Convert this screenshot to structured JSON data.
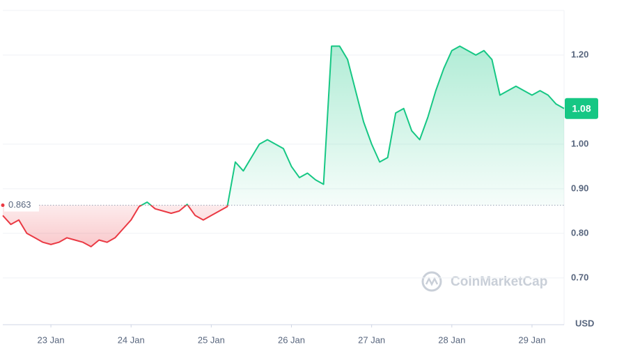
{
  "chart_data": {
    "type": "line",
    "xlim": [
      0,
      70
    ],
    "xticks": [
      {
        "value": 6,
        "label": "23 Jan"
      },
      {
        "value": 16,
        "label": "24 Jan"
      },
      {
        "value": 26,
        "label": "25 Jan"
      },
      {
        "value": 36,
        "label": "26 Jan"
      },
      {
        "value": 46,
        "label": "27 Jan"
      },
      {
        "value": 56,
        "label": "28 Jan"
      },
      {
        "value": 66,
        "label": "29 Jan"
      }
    ],
    "ylim": [
      0.595,
      1.3
    ],
    "yticks": [
      {
        "value": 0.7,
        "label": "0.70"
      },
      {
        "value": 0.8,
        "label": "0.80"
      },
      {
        "value": 0.9,
        "label": "0.90"
      },
      {
        "value": 1.0,
        "label": "1.00"
      },
      {
        "value": 1.2,
        "label": "1.20"
      }
    ],
    "grid": true,
    "unit": "USD",
    "baseline": {
      "value": 0.863,
      "label": "0.863"
    },
    "current_price": {
      "value": 1.08,
      "label": "1.08"
    },
    "up_color": "#16c784",
    "down_color": "#ea3943",
    "watermark": "CoinMarketCap",
    "series": [
      {
        "color": "#16c784",
        "values": [
          0.84,
          0.82,
          0.83,
          0.8,
          0.79,
          0.78,
          0.775,
          0.78,
          0.79,
          0.785,
          0.78,
          0.77,
          0.785,
          0.78,
          0.79,
          0.81,
          0.83,
          0.86,
          0.87,
          0.855,
          0.85,
          0.845,
          0.85,
          0.865,
          0.84,
          0.83,
          0.84,
          0.85,
          0.86,
          0.96,
          0.94,
          0.97,
          1.0,
          1.01,
          1.0,
          0.99,
          0.95,
          0.925,
          0.935,
          0.92,
          0.91,
          1.22,
          1.22,
          1.19,
          1.12,
          1.05,
          1.0,
          0.96,
          0.97,
          1.07,
          1.08,
          1.03,
          1.01,
          1.06,
          1.12,
          1.17,
          1.21,
          1.22,
          1.21,
          1.2,
          1.21,
          1.19,
          1.11,
          1.12,
          1.13,
          1.12,
          1.11,
          1.12,
          1.11,
          1.09,
          1.08
        ]
      }
    ]
  }
}
